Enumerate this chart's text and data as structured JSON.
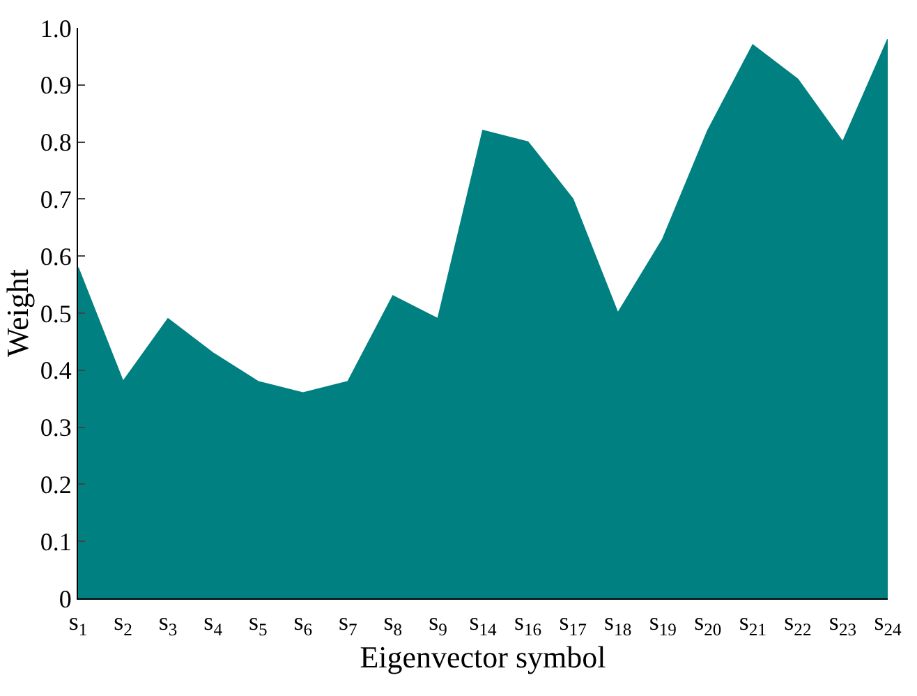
{
  "chart_data": {
    "type": "area",
    "xlabel": "Eigenvector symbol",
    "ylabel": "Weight",
    "categories": [
      "s$_{1}$",
      "s$_{2}$",
      "s$_{3}$",
      "s$_{4}$",
      "s$_{5}$",
      "s$_{6}$",
      "s$_{7}$",
      "s$_{8}$",
      "s$_{9}$",
      "s$_{14}$",
      "s$_{16}$",
      "s$_{17}$",
      "s$_{18}$",
      "s$_{19}$",
      "s$_{20}$",
      "s$_{21}$",
      "s$_{22}$",
      "s$_{23}$",
      "s$_{24}$"
    ],
    "series": [
      {
        "color": "#008080",
        "values": [
          0.58,
          0.38,
          0.49,
          0.43,
          0.38,
          0.36,
          0.38,
          0.53,
          0.49,
          0.82,
          0.8,
          0.7,
          0.5,
          0.63,
          0.82,
          0.97,
          0.91,
          0.8,
          0.98
        ]
      }
    ],
    "ylim": [
      0,
      1
    ],
    "yticks": [
      0,
      0.1,
      0.2,
      0.3,
      0.4,
      0.5,
      0.6,
      0.7,
      0.8,
      0.9,
      {
        "value": 1,
        "label": "1.0"
      }
    ],
    "legend": false
  }
}
